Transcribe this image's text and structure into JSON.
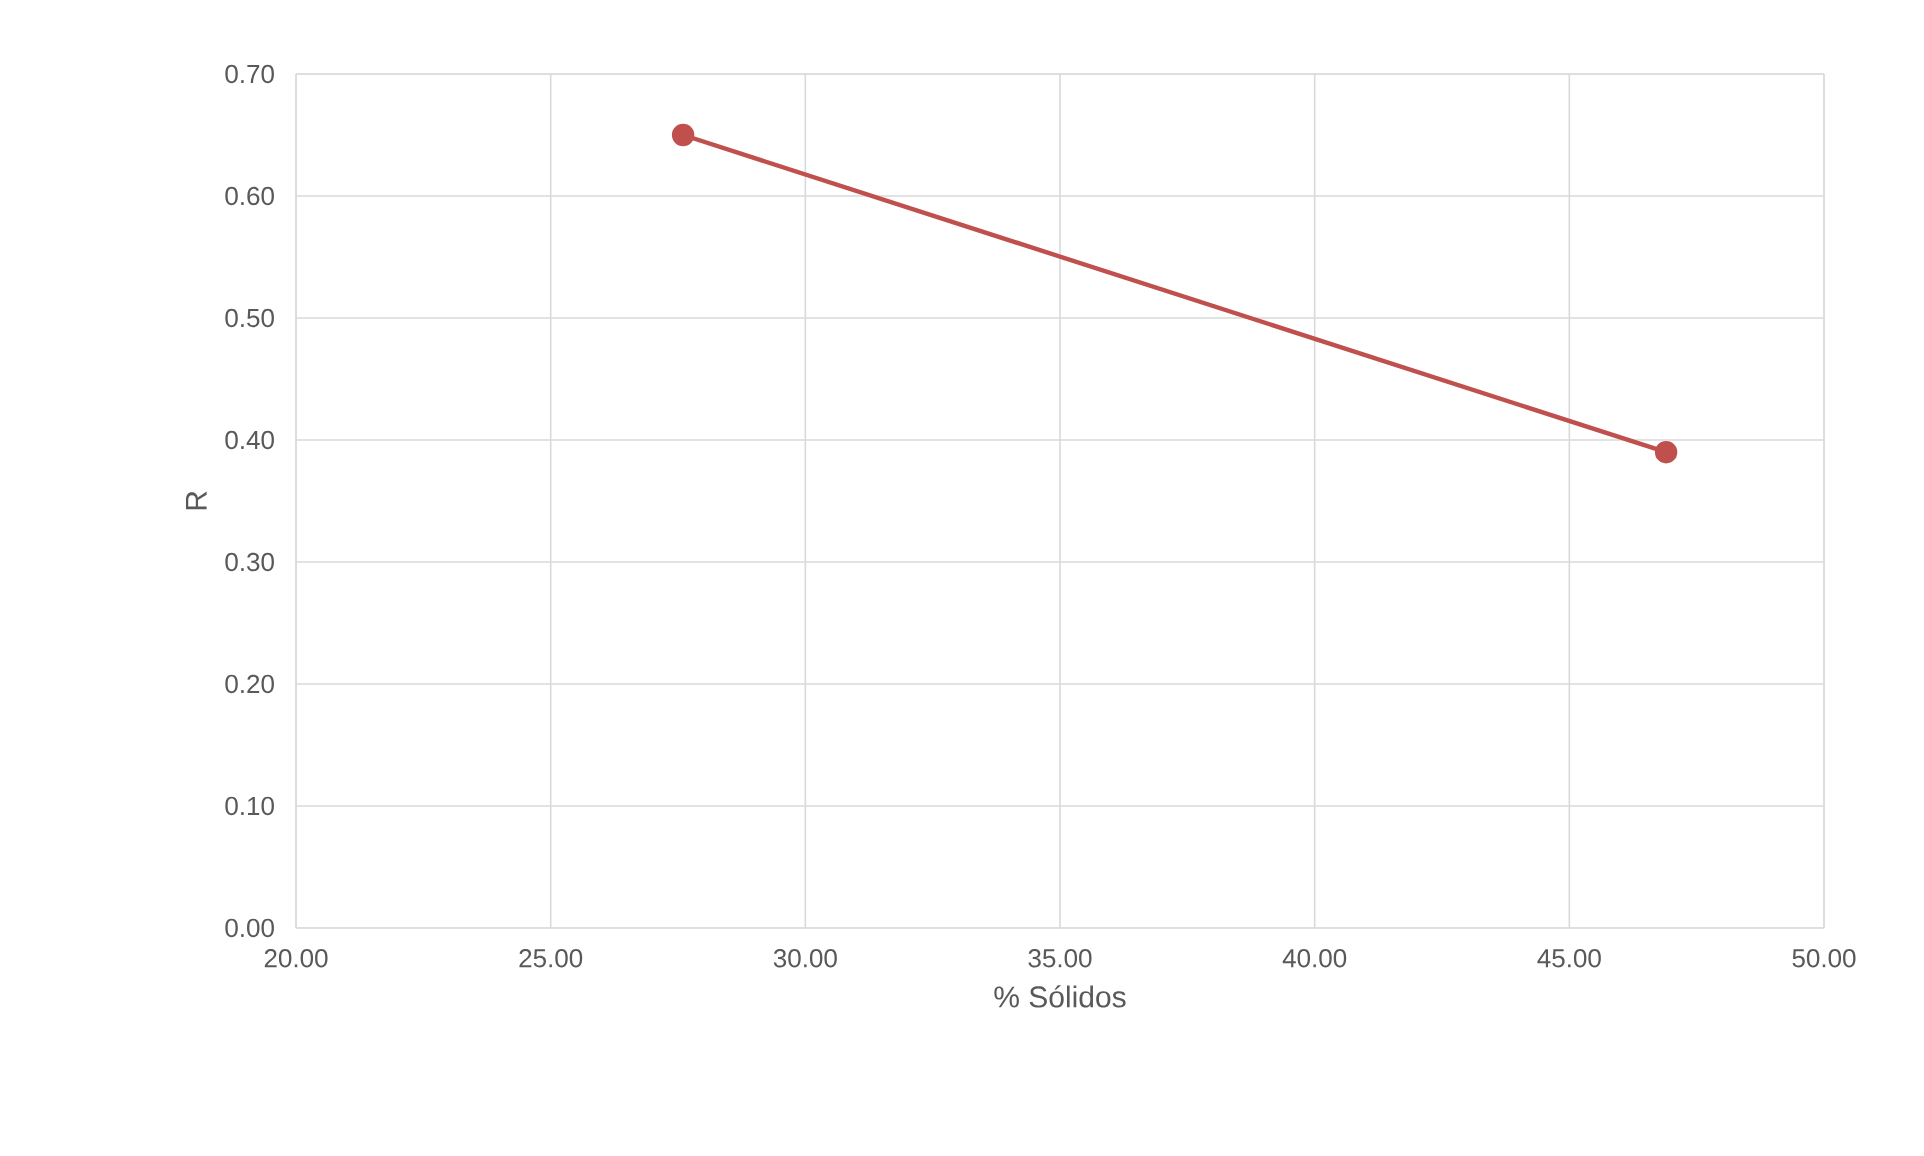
{
  "chart_data": {
    "type": "line",
    "xlabel": "% Sólidos",
    "ylabel": "R",
    "x": [
      27.6,
      46.9
    ],
    "series": [
      {
        "color": "#c0504d",
        "values": [
          0.65,
          0.39
        ]
      }
    ],
    "xlim": [
      20,
      50
    ],
    "ylim": [
      0,
      0.7
    ],
    "xticks": [
      {
        "value": 20,
        "label": "20.00"
      },
      {
        "value": 25,
        "label": "25.00"
      },
      {
        "value": 30,
        "label": "30.00"
      },
      {
        "value": 35,
        "label": "35.00"
      },
      {
        "value": 40,
        "label": "40.00"
      },
      {
        "value": 45,
        "label": "45.00"
      },
      {
        "value": 50,
        "label": "50.00"
      }
    ],
    "yticks": [
      {
        "value": 0,
        "label": "0.00"
      },
      {
        "value": 0.1,
        "label": "0.10"
      },
      {
        "value": 0.2,
        "label": "0.20"
      },
      {
        "value": 0.3,
        "label": "0.30"
      },
      {
        "value": 0.4,
        "label": "0.40"
      },
      {
        "value": 0.5,
        "label": "0.50"
      },
      {
        "value": 0.6,
        "label": "0.60"
      },
      {
        "value": 0.7,
        "label": "0.70"
      }
    ],
    "grid": true,
    "marker": "circle",
    "line_style": "solid"
  }
}
